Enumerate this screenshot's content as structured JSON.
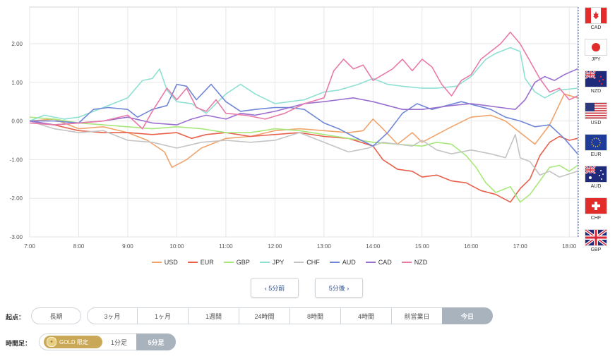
{
  "chart_data": {
    "type": "line",
    "x_ticks": [
      "7:00",
      "8:00",
      "9:00",
      "10:00",
      "11:00",
      "12:00",
      "13:00",
      "14:00",
      "15:00",
      "16:00",
      "17:00",
      "18:00"
    ],
    "y_ticks": [
      "2.00",
      "1.00",
      "0.00",
      "-1.00",
      "-2.00",
      "-3.00"
    ],
    "ylim": [
      -3.0,
      2.95
    ],
    "xlim_hours": [
      7.0,
      18.17
    ],
    "grid": true,
    "legend_position": "bottom",
    "series": [
      {
        "name": "USD",
        "color": "#f0a46c",
        "points": [
          [
            7.0,
            0.0
          ],
          [
            7.5,
            0.05
          ],
          [
            8.0,
            -0.2
          ],
          [
            8.5,
            -0.15
          ],
          [
            9.0,
            -0.3
          ],
          [
            9.4,
            -0.5
          ],
          [
            9.75,
            -0.8
          ],
          [
            9.9,
            -1.2
          ],
          [
            10.2,
            -1.0
          ],
          [
            10.5,
            -0.7
          ],
          [
            11.0,
            -0.45
          ],
          [
            11.5,
            -0.4
          ],
          [
            12.0,
            -0.25
          ],
          [
            12.5,
            -0.2
          ],
          [
            13.0,
            -0.25
          ],
          [
            13.5,
            -0.3
          ],
          [
            13.8,
            -0.25
          ],
          [
            14.0,
            0.05
          ],
          [
            14.2,
            -0.2
          ],
          [
            14.5,
            -0.6
          ],
          [
            14.8,
            -0.3
          ],
          [
            15.0,
            -0.55
          ],
          [
            15.3,
            -0.35
          ],
          [
            15.6,
            -0.15
          ],
          [
            16.0,
            0.1
          ],
          [
            16.4,
            0.15
          ],
          [
            16.7,
            0.0
          ],
          [
            17.0,
            -0.3
          ],
          [
            17.3,
            -0.6
          ],
          [
            17.6,
            -0.1
          ],
          [
            17.9,
            0.7
          ],
          [
            18.17,
            0.6
          ]
        ]
      },
      {
        "name": "EUR",
        "color": "#e8604c",
        "points": [
          [
            7.0,
            0.0
          ],
          [
            7.5,
            -0.1
          ],
          [
            8.0,
            -0.25
          ],
          [
            8.5,
            -0.3
          ],
          [
            9.0,
            -0.3
          ],
          [
            9.5,
            -0.35
          ],
          [
            10.0,
            -0.3
          ],
          [
            10.3,
            -0.45
          ],
          [
            10.6,
            -0.35
          ],
          [
            11.0,
            -0.3
          ],
          [
            11.5,
            -0.4
          ],
          [
            12.0,
            -0.35
          ],
          [
            12.5,
            -0.3
          ],
          [
            13.0,
            -0.4
          ],
          [
            13.5,
            -0.45
          ],
          [
            14.0,
            -0.65
          ],
          [
            14.2,
            -1.0
          ],
          [
            14.5,
            -1.25
          ],
          [
            14.8,
            -1.3
          ],
          [
            15.0,
            -1.45
          ],
          [
            15.3,
            -1.4
          ],
          [
            15.6,
            -1.55
          ],
          [
            15.9,
            -1.6
          ],
          [
            16.2,
            -1.8
          ],
          [
            16.5,
            -1.9
          ],
          [
            16.8,
            -2.1
          ],
          [
            17.0,
            -1.75
          ],
          [
            17.2,
            -1.5
          ],
          [
            17.4,
            -0.9
          ],
          [
            17.6,
            -0.55
          ],
          [
            17.8,
            -0.4
          ],
          [
            18.0,
            -0.5
          ],
          [
            18.17,
            -0.45
          ]
        ]
      },
      {
        "name": "GBP",
        "color": "#a8e87a",
        "points": [
          [
            7.0,
            0.1
          ],
          [
            7.5,
            0.05
          ],
          [
            8.0,
            -0.05
          ],
          [
            8.5,
            -0.1
          ],
          [
            9.0,
            -0.15
          ],
          [
            9.5,
            -0.2
          ],
          [
            10.0,
            -0.15
          ],
          [
            10.5,
            -0.2
          ],
          [
            11.0,
            -0.3
          ],
          [
            11.5,
            -0.3
          ],
          [
            12.0,
            -0.2
          ],
          [
            12.5,
            -0.25
          ],
          [
            13.0,
            -0.35
          ],
          [
            13.5,
            -0.45
          ],
          [
            14.0,
            -0.55
          ],
          [
            14.5,
            -0.6
          ],
          [
            15.0,
            -0.65
          ],
          [
            15.3,
            -0.55
          ],
          [
            15.6,
            -0.6
          ],
          [
            15.9,
            -0.9
          ],
          [
            16.1,
            -1.2
          ],
          [
            16.3,
            -1.6
          ],
          [
            16.5,
            -1.85
          ],
          [
            16.8,
            -1.7
          ],
          [
            17.0,
            -2.1
          ],
          [
            17.2,
            -1.9
          ],
          [
            17.4,
            -1.55
          ],
          [
            17.6,
            -1.2
          ],
          [
            17.8,
            -1.15
          ],
          [
            18.0,
            -1.3
          ],
          [
            18.17,
            -1.15
          ]
        ]
      },
      {
        "name": "JPY",
        "color": "#8ee0d2",
        "points": [
          [
            7.0,
            0.0
          ],
          [
            7.3,
            0.15
          ],
          [
            7.7,
            0.05
          ],
          [
            8.0,
            0.1
          ],
          [
            8.4,
            0.3
          ],
          [
            8.7,
            0.45
          ],
          [
            9.0,
            0.6
          ],
          [
            9.3,
            1.05
          ],
          [
            9.5,
            1.1
          ],
          [
            9.65,
            1.35
          ],
          [
            9.8,
            0.8
          ],
          [
            10.0,
            0.5
          ],
          [
            10.3,
            0.45
          ],
          [
            10.6,
            0.2
          ],
          [
            11.0,
            0.7
          ],
          [
            11.3,
            0.95
          ],
          [
            11.6,
            0.7
          ],
          [
            12.0,
            0.45
          ],
          [
            12.3,
            0.5
          ],
          [
            12.6,
            0.55
          ],
          [
            13.0,
            0.75
          ],
          [
            13.3,
            0.8
          ],
          [
            13.7,
            0.95
          ],
          [
            14.0,
            1.1
          ],
          [
            14.3,
            0.95
          ],
          [
            14.6,
            0.9
          ],
          [
            15.0,
            0.85
          ],
          [
            15.3,
            0.85
          ],
          [
            15.7,
            0.9
          ],
          [
            16.0,
            1.15
          ],
          [
            16.3,
            1.6
          ],
          [
            16.5,
            1.75
          ],
          [
            16.8,
            1.9
          ],
          [
            17.0,
            1.8
          ],
          [
            17.1,
            1.1
          ],
          [
            17.3,
            0.75
          ],
          [
            17.5,
            0.6
          ],
          [
            17.8,
            0.8
          ],
          [
            18.17,
            0.85
          ]
        ]
      },
      {
        "name": "CHF",
        "color": "#c4c4c4",
        "points": [
          [
            7.0,
            0.0
          ],
          [
            7.5,
            -0.2
          ],
          [
            8.0,
            -0.3
          ],
          [
            8.5,
            -0.25
          ],
          [
            9.0,
            -0.5
          ],
          [
            9.5,
            -0.55
          ],
          [
            10.0,
            -0.7
          ],
          [
            10.5,
            -0.55
          ],
          [
            11.0,
            -0.5
          ],
          [
            11.5,
            -0.55
          ],
          [
            12.0,
            -0.5
          ],
          [
            12.5,
            -0.3
          ],
          [
            13.0,
            -0.55
          ],
          [
            13.5,
            -0.8
          ],
          [
            13.9,
            -0.7
          ],
          [
            14.2,
            -0.55
          ],
          [
            14.5,
            -0.6
          ],
          [
            14.8,
            -0.65
          ],
          [
            15.0,
            -0.5
          ],
          [
            15.3,
            -0.75
          ],
          [
            15.6,
            -0.85
          ],
          [
            16.0,
            -0.75
          ],
          [
            16.4,
            -0.85
          ],
          [
            16.7,
            -0.95
          ],
          [
            16.9,
            -0.35
          ],
          [
            17.0,
            -0.95
          ],
          [
            17.2,
            -1.05
          ],
          [
            17.4,
            -1.4
          ],
          [
            17.6,
            -1.3
          ],
          [
            17.8,
            -1.45
          ],
          [
            18.17,
            -1.3
          ]
        ]
      },
      {
        "name": "AUD",
        "color": "#6f87d6",
        "points": [
          [
            7.0,
            0.0
          ],
          [
            7.5,
            0.0
          ],
          [
            8.0,
            -0.05
          ],
          [
            8.3,
            0.3
          ],
          [
            8.6,
            0.35
          ],
          [
            9.0,
            0.3
          ],
          [
            9.2,
            0.1
          ],
          [
            9.5,
            0.3
          ],
          [
            9.8,
            0.4
          ],
          [
            10.0,
            0.95
          ],
          [
            10.2,
            0.9
          ],
          [
            10.4,
            0.55
          ],
          [
            10.7,
            0.95
          ],
          [
            11.0,
            0.5
          ],
          [
            11.3,
            0.25
          ],
          [
            11.6,
            0.3
          ],
          [
            12.0,
            0.35
          ],
          [
            12.3,
            0.35
          ],
          [
            12.6,
            0.3
          ],
          [
            13.0,
            -0.05
          ],
          [
            13.3,
            -0.2
          ],
          [
            13.6,
            -0.4
          ],
          [
            14.0,
            -0.65
          ],
          [
            14.3,
            -0.3
          ],
          [
            14.6,
            0.2
          ],
          [
            14.9,
            0.45
          ],
          [
            15.2,
            0.3
          ],
          [
            15.5,
            0.4
          ],
          [
            15.8,
            0.5
          ],
          [
            16.1,
            0.4
          ],
          [
            16.4,
            0.3
          ],
          [
            16.7,
            0.1
          ],
          [
            17.0,
            0.0
          ],
          [
            17.3,
            -0.15
          ],
          [
            17.6,
            -0.1
          ],
          [
            17.9,
            -0.45
          ],
          [
            18.17,
            -0.85
          ]
        ]
      },
      {
        "name": "CAD",
        "color": "#9a6fd0",
        "points": [
          [
            7.0,
            0.0
          ],
          [
            7.5,
            -0.1
          ],
          [
            8.0,
            -0.05
          ],
          [
            8.5,
            0.0
          ],
          [
            9.0,
            0.1
          ],
          [
            9.5,
            -0.05
          ],
          [
            10.0,
            -0.1
          ],
          [
            10.3,
            0.05
          ],
          [
            10.6,
            0.15
          ],
          [
            11.0,
            0.05
          ],
          [
            11.3,
            0.2
          ],
          [
            11.6,
            0.15
          ],
          [
            12.0,
            0.25
          ],
          [
            12.3,
            0.35
          ],
          [
            12.6,
            0.45
          ],
          [
            13.0,
            0.5
          ],
          [
            13.3,
            0.55
          ],
          [
            13.6,
            0.6
          ],
          [
            14.0,
            0.5
          ],
          [
            14.3,
            0.4
          ],
          [
            14.6,
            0.3
          ],
          [
            15.0,
            0.3
          ],
          [
            15.3,
            0.35
          ],
          [
            15.6,
            0.4
          ],
          [
            16.0,
            0.45
          ],
          [
            16.3,
            0.4
          ],
          [
            16.6,
            0.35
          ],
          [
            16.9,
            0.3
          ],
          [
            17.1,
            0.55
          ],
          [
            17.3,
            1.0
          ],
          [
            17.5,
            1.15
          ],
          [
            17.7,
            1.05
          ],
          [
            17.9,
            1.2
          ],
          [
            18.17,
            1.35
          ]
        ]
      },
      {
        "name": "NZD",
        "color": "#e87aa8",
        "points": [
          [
            7.0,
            -0.05
          ],
          [
            7.5,
            -0.1
          ],
          [
            8.0,
            -0.05
          ],
          [
            8.5,
            0.0
          ],
          [
            9.0,
            0.15
          ],
          [
            9.3,
            -0.2
          ],
          [
            9.5,
            0.25
          ],
          [
            9.8,
            0.85
          ],
          [
            10.0,
            0.55
          ],
          [
            10.2,
            0.85
          ],
          [
            10.4,
            0.35
          ],
          [
            10.6,
            0.25
          ],
          [
            10.8,
            0.55
          ],
          [
            11.0,
            0.2
          ],
          [
            11.4,
            0.15
          ],
          [
            11.8,
            0.05
          ],
          [
            12.2,
            0.2
          ],
          [
            12.6,
            0.45
          ],
          [
            13.0,
            0.6
          ],
          [
            13.2,
            1.3
          ],
          [
            13.4,
            1.6
          ],
          [
            13.6,
            1.35
          ],
          [
            13.8,
            1.45
          ],
          [
            14.0,
            1.05
          ],
          [
            14.2,
            1.2
          ],
          [
            14.4,
            1.35
          ],
          [
            14.6,
            1.6
          ],
          [
            14.8,
            1.3
          ],
          [
            15.0,
            1.6
          ],
          [
            15.2,
            1.4
          ],
          [
            15.4,
            0.95
          ],
          [
            15.6,
            0.65
          ],
          [
            15.8,
            1.05
          ],
          [
            16.0,
            1.2
          ],
          [
            16.2,
            1.6
          ],
          [
            16.4,
            1.8
          ],
          [
            16.6,
            2.0
          ],
          [
            16.8,
            2.3
          ],
          [
            17.0,
            2.0
          ],
          [
            17.2,
            1.55
          ],
          [
            17.4,
            1.1
          ],
          [
            17.6,
            0.75
          ],
          [
            17.8,
            0.85
          ],
          [
            18.0,
            0.55
          ],
          [
            18.17,
            0.65
          ]
        ]
      }
    ]
  },
  "legend": [
    {
      "name": "USD",
      "color": "#f0a46c"
    },
    {
      "name": "EUR",
      "color": "#e8604c"
    },
    {
      "name": "GBP",
      "color": "#a8e87a"
    },
    {
      "name": "JPY",
      "color": "#8ee0d2"
    },
    {
      "name": "CHF",
      "color": "#c4c4c4"
    },
    {
      "name": "AUD",
      "color": "#6f87d6"
    },
    {
      "name": "CAD",
      "color": "#9a6fd0"
    },
    {
      "name": "NZD",
      "color": "#e87aa8"
    }
  ],
  "flags": [
    "CAD",
    "JPY",
    "NZD",
    "USD",
    "EUR",
    "AUD",
    "CHF",
    "GBP"
  ],
  "nav": {
    "prev": "‹ 5分前",
    "next": "5分後 ›"
  },
  "start_point": {
    "label": "起点：",
    "options": [
      "長期",
      "3ヶ月",
      "1ヶ月",
      "1週間",
      "24時間",
      "8時間",
      "4時間",
      "前営業日",
      "今日"
    ],
    "selected": "今日"
  },
  "timeframe": {
    "label": "時間足：",
    "gold_label": "GOLD 限定",
    "options": [
      "1分足",
      "5分足"
    ],
    "selected": "5分足"
  }
}
